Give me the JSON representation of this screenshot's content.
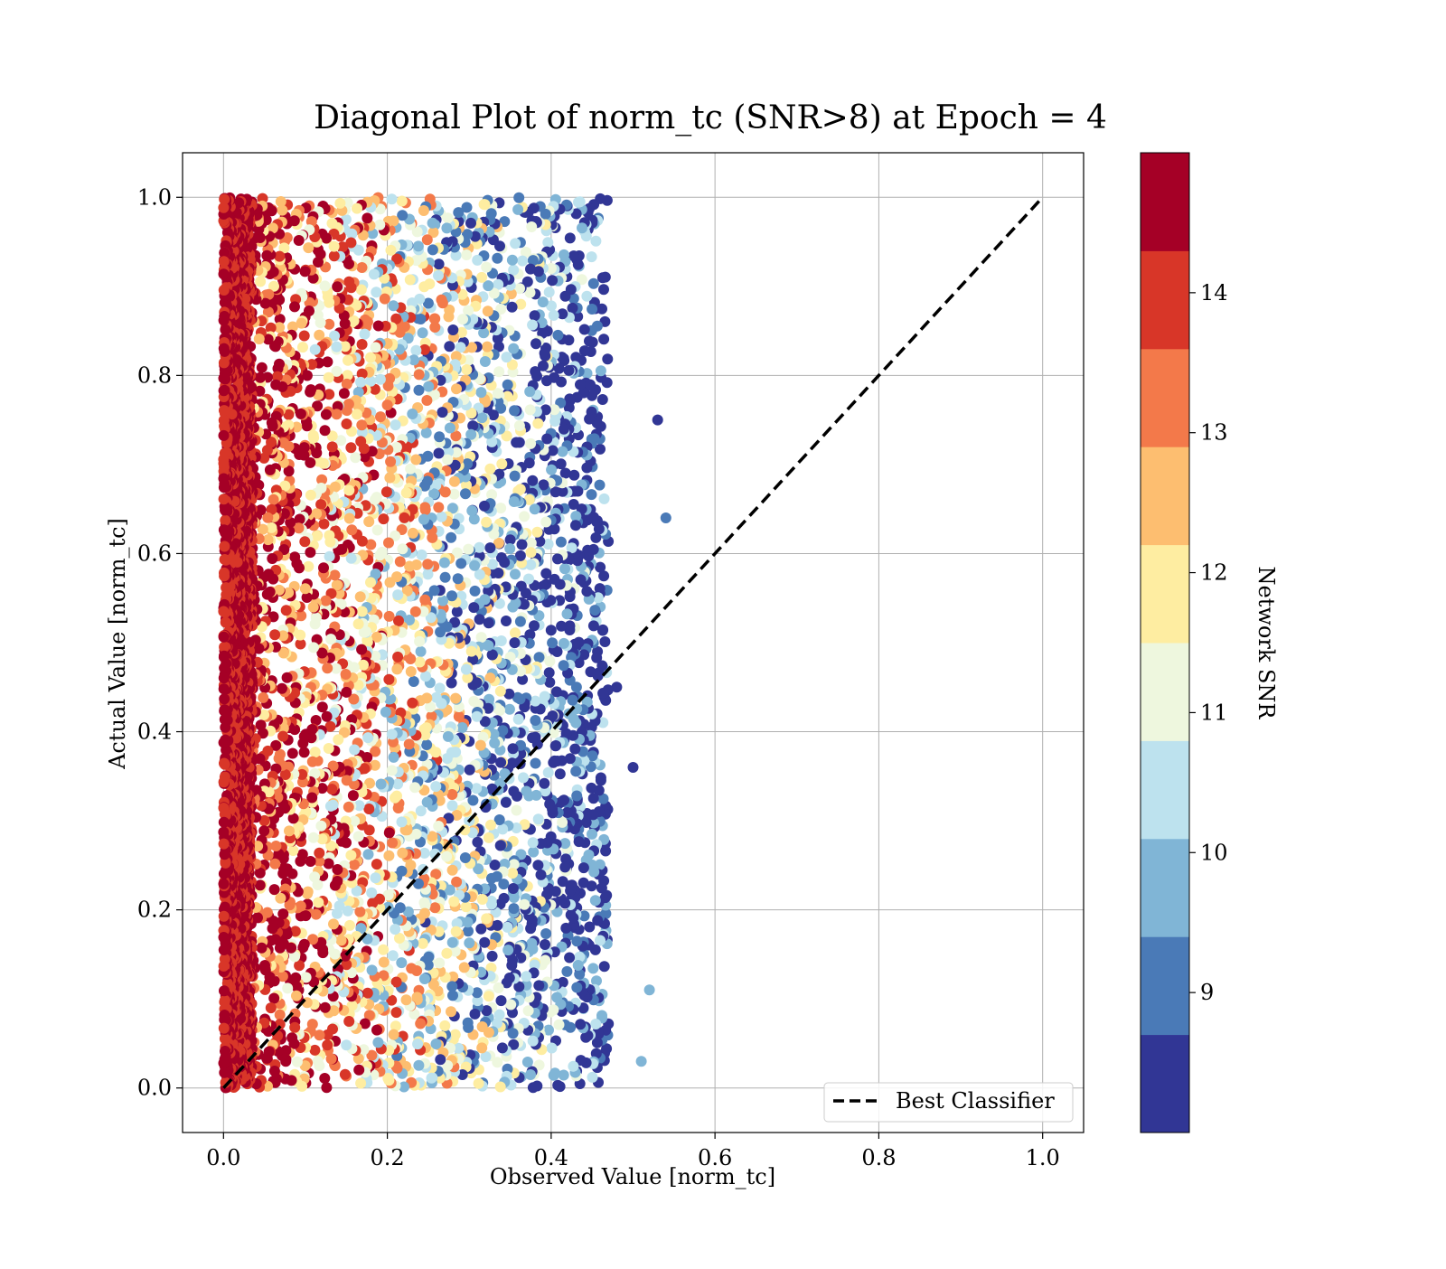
{
  "chart_data": {
    "type": "scatter",
    "title": "Diagonal Plot of norm_tc (SNR>8) at Epoch = 4",
    "xlabel": "Observed Value [norm_tc]",
    "ylabel": "Actual Value [norm_tc]",
    "xlim": [
      -0.05,
      1.05
    ],
    "ylim": [
      -0.05,
      1.05
    ],
    "xticks": [
      0.0,
      0.2,
      0.4,
      0.6,
      0.8,
      1.0
    ],
    "xtick_labels": [
      "0.0",
      "0.2",
      "0.4",
      "0.6",
      "0.8",
      "1.0"
    ],
    "yticks": [
      0.0,
      0.2,
      0.4,
      0.6,
      0.8,
      1.0
    ],
    "ytick_labels": [
      "0.0",
      "0.2",
      "0.4",
      "0.6",
      "0.8",
      "1.0"
    ],
    "grid": true,
    "legend": {
      "placement": "lower-right",
      "entries": [
        {
          "label": "Best Classifier",
          "style": "black dashed line"
        }
      ]
    },
    "reference_line": {
      "label": "Best Classifier",
      "x": [
        0.0,
        1.0
      ],
      "y": [
        0.0,
        1.0
      ],
      "color": "#000000",
      "style": "dashed"
    },
    "scatter_description": {
      "x_range_approx": [
        0.0,
        0.55
      ],
      "y_range": [
        0.0,
        1.0
      ],
      "trend": "high-SNR points concentrate near x=0; lower-SNR points spread to x≈0.5",
      "approx_point_count": "several thousand",
      "sample_points": [
        {
          "x": 0.01,
          "y": 0.5,
          "snr": 14.8
        },
        {
          "x": 0.02,
          "y": 0.1,
          "snr": 14.6
        },
        {
          "x": 0.03,
          "y": 0.9,
          "snr": 14.2
        },
        {
          "x": 0.06,
          "y": 0.35,
          "snr": 13.8
        },
        {
          "x": 0.08,
          "y": 0.7,
          "snr": 13.2
        },
        {
          "x": 0.12,
          "y": 0.2,
          "snr": 12.6
        },
        {
          "x": 0.18,
          "y": 0.55,
          "snr": 12.0
        },
        {
          "x": 0.25,
          "y": 0.8,
          "snr": 11.2
        },
        {
          "x": 0.3,
          "y": 0.3,
          "snr": 10.5
        },
        {
          "x": 0.38,
          "y": 0.65,
          "snr": 9.6
        },
        {
          "x": 0.44,
          "y": 0.15,
          "snr": 8.9
        },
        {
          "x": 0.48,
          "y": 0.45,
          "snr": 8.4
        },
        {
          "x": 0.52,
          "y": 0.11,
          "snr": 9.8
        },
        {
          "x": 0.54,
          "y": 0.64,
          "snr": 9.2
        },
        {
          "x": 0.5,
          "y": 0.36,
          "snr": 8.3
        },
        {
          "x": 0.53,
          "y": 0.75,
          "snr": 8.6
        },
        {
          "x": 0.51,
          "y": 0.03,
          "snr": 9.5
        }
      ]
    },
    "colorbar": {
      "label": "Network SNR",
      "range": [
        8.0,
        15.0
      ],
      "bins": [
        {
          "from": 8.0,
          "to": 8.7,
          "color": "#313695"
        },
        {
          "from": 8.7,
          "to": 9.4,
          "color": "#4a7ab7"
        },
        {
          "from": 9.4,
          "to": 10.1,
          "color": "#80b5d6"
        },
        {
          "from": 10.1,
          "to": 10.8,
          "color": "#bde2ee"
        },
        {
          "from": 10.8,
          "to": 11.5,
          "color": "#eef7de"
        },
        {
          "from": 11.5,
          "to": 12.2,
          "color": "#feeda1"
        },
        {
          "from": 12.2,
          "to": 12.9,
          "color": "#fdbe70"
        },
        {
          "from": 12.9,
          "to": 13.6,
          "color": "#f3794a"
        },
        {
          "from": 13.6,
          "to": 14.3,
          "color": "#d83628"
        },
        {
          "from": 14.3,
          "to": 15.0,
          "color": "#a50026"
        }
      ],
      "ticks": [
        9,
        10,
        11,
        12,
        13,
        14
      ],
      "tick_labels": [
        "9",
        "10",
        "11",
        "12",
        "13",
        "14"
      ]
    }
  }
}
